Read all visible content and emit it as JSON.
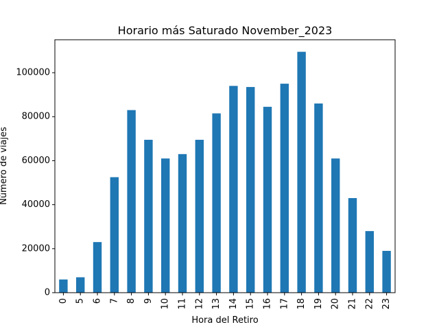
{
  "chart_data": {
    "type": "bar",
    "title": "Horario más Saturado November_2023",
    "xlabel": "Hora del Retiro",
    "ylabel": "Número de viajes",
    "categories": [
      "0",
      "5",
      "6",
      "7",
      "8",
      "9",
      "10",
      "11",
      "12",
      "13",
      "14",
      "15",
      "16",
      "17",
      "18",
      "19",
      "20",
      "21",
      "22",
      "23"
    ],
    "values": [
      6000,
      7000,
      23000,
      52500,
      83000,
      69500,
      61000,
      63000,
      69500,
      81500,
      94000,
      93500,
      84500,
      95000,
      109500,
      86000,
      61000,
      43000,
      28000,
      19000
    ],
    "ylim": [
      0,
      114975
    ],
    "yticks": [
      0,
      20000,
      40000,
      60000,
      80000,
      100000
    ],
    "bar_color": "#1f77b4",
    "grid": false,
    "legend": "none"
  }
}
